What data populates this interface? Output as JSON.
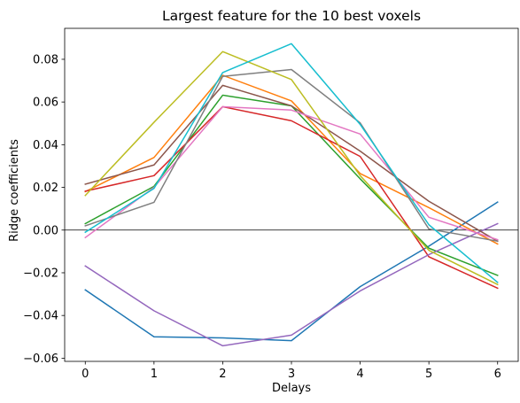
{
  "chart_data": {
    "type": "line",
    "title": "Largest feature for the 10 best voxels",
    "xlabel": "Delays",
    "ylabel": "Ridge coefficients",
    "x": [
      0,
      1,
      2,
      3,
      4,
      5,
      6
    ],
    "xlim": [
      -0.3,
      6.3
    ],
    "ylim": [
      -0.0615,
      0.0945
    ],
    "xticks": [
      0,
      1,
      2,
      3,
      4,
      5,
      6
    ],
    "yticks": [
      -0.06,
      -0.04,
      -0.02,
      0.0,
      0.02,
      0.04,
      0.06,
      0.08
    ],
    "ytick_labels": [
      "−0.06",
      "−0.04",
      "−0.02",
      "0.00",
      "0.02",
      "0.04",
      "0.06",
      "0.08"
    ],
    "zero_line": true,
    "grid": false,
    "series": [
      {
        "color": "#1f77b4",
        "values": [
          -0.028,
          -0.05,
          -0.0505,
          -0.0518,
          -0.0265,
          -0.0075,
          0.0131
        ]
      },
      {
        "color": "#ff7f0e",
        "values": [
          0.018,
          0.034,
          0.0725,
          0.0605,
          0.0265,
          0.0105,
          -0.0065
        ]
      },
      {
        "color": "#2ca02c",
        "values": [
          0.003,
          0.0205,
          0.0632,
          0.0582,
          0.024,
          -0.0085,
          -0.0212
        ]
      },
      {
        "color": "#d62728",
        "values": [
          0.0182,
          0.0255,
          0.0578,
          0.0512,
          0.0345,
          -0.0125,
          -0.0272
        ]
      },
      {
        "color": "#9467bd",
        "values": [
          -0.0168,
          -0.0378,
          -0.0542,
          -0.0492,
          -0.0285,
          -0.0115,
          0.003
        ]
      },
      {
        "color": "#8c564b",
        "values": [
          0.0215,
          0.0305,
          0.0678,
          0.0582,
          0.037,
          0.0135,
          -0.0052
        ]
      },
      {
        "color": "#e377c2",
        "values": [
          -0.0035,
          0.02,
          0.0578,
          0.0562,
          0.045,
          0.006,
          -0.0045
        ]
      },
      {
        "color": "#7f7f7f",
        "values": [
          0.002,
          0.013,
          0.072,
          0.0752,
          0.0502,
          0.0005,
          -0.0052
        ]
      },
      {
        "color": "#bcbd22",
        "values": [
          0.0162,
          0.0505,
          0.0836,
          0.0705,
          0.0255,
          -0.0095,
          -0.0255
        ]
      },
      {
        "color": "#17becf",
        "values": [
          -0.001,
          0.0195,
          0.0738,
          0.0873,
          0.0495,
          0.0025,
          -0.0245
        ]
      }
    ]
  }
}
